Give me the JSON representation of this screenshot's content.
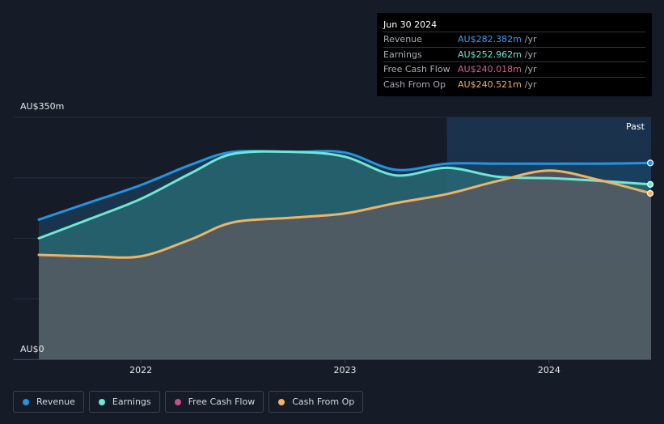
{
  "tooltip": {
    "date": "Jun 30 2024",
    "rows": [
      {
        "label": "Revenue",
        "value": "AU$282.382m",
        "unit": "/yr",
        "color": "#3d9df0"
      },
      {
        "label": "Earnings",
        "value": "AU$252.962m",
        "unit": "/yr",
        "color": "#6de8d4"
      },
      {
        "label": "Free Cash Flow",
        "value": "AU$240.018m",
        "unit": "/yr",
        "color": "#e05a93"
      },
      {
        "label": "Cash From Op",
        "value": "AU$240.521m",
        "unit": "/yr",
        "color": "#efb366"
      }
    ]
  },
  "past_label": "Past",
  "legend": [
    {
      "label": "Revenue",
      "color": "#2394df"
    },
    {
      "label": "Earnings",
      "color": "#6de8d4"
    },
    {
      "label": "Free Cash Flow",
      "color": "#c8508a"
    },
    {
      "label": "Cash From Op",
      "color": "#efb366"
    }
  ],
  "chart_data": {
    "type": "area",
    "ylim": [
      0,
      350
    ],
    "y_tick_labels": [
      "AU$350m",
      "AU$0"
    ],
    "x_tick_labels": [
      "2022",
      "2023",
      "2024"
    ],
    "x_ticks": [
      2022.0,
      2023.0,
      2024.0
    ],
    "xlim": [
      2021.5,
      2024.5
    ],
    "past_start": 2023.5,
    "grid": true,
    "series": [
      {
        "name": "Revenue",
        "color": "#2394df",
        "x": [
          2021.5,
          2021.75,
          2022.0,
          2022.25,
          2022.45,
          2022.75,
          2023.0,
          2023.25,
          2023.5,
          2023.75,
          2024.0,
          2024.25,
          2024.5
        ],
        "y": [
          202,
          227,
          252,
          282,
          300,
          300,
          299,
          274,
          283,
          283,
          283,
          283,
          284
        ]
      },
      {
        "name": "Earnings",
        "color": "#6de8d4",
        "x": [
          2021.5,
          2021.75,
          2022.0,
          2022.25,
          2022.45,
          2022.75,
          2023.0,
          2023.25,
          2023.5,
          2023.75,
          2024.0,
          2024.25,
          2024.5
        ],
        "y": [
          175,
          203,
          232,
          270,
          297,
          300,
          293,
          266,
          277,
          264,
          262,
          258,
          253
        ]
      },
      {
        "name": "Cash From Op",
        "color": "#efb366",
        "x": [
          2021.5,
          2021.75,
          2022.0,
          2022.25,
          2022.45,
          2022.75,
          2023.0,
          2023.25,
          2023.5,
          2023.75,
          2024.0,
          2024.25,
          2024.5
        ],
        "y": [
          151,
          149,
          149,
          174,
          198,
          205,
          211,
          226,
          239,
          258,
          273,
          259,
          240
        ]
      }
    ]
  }
}
